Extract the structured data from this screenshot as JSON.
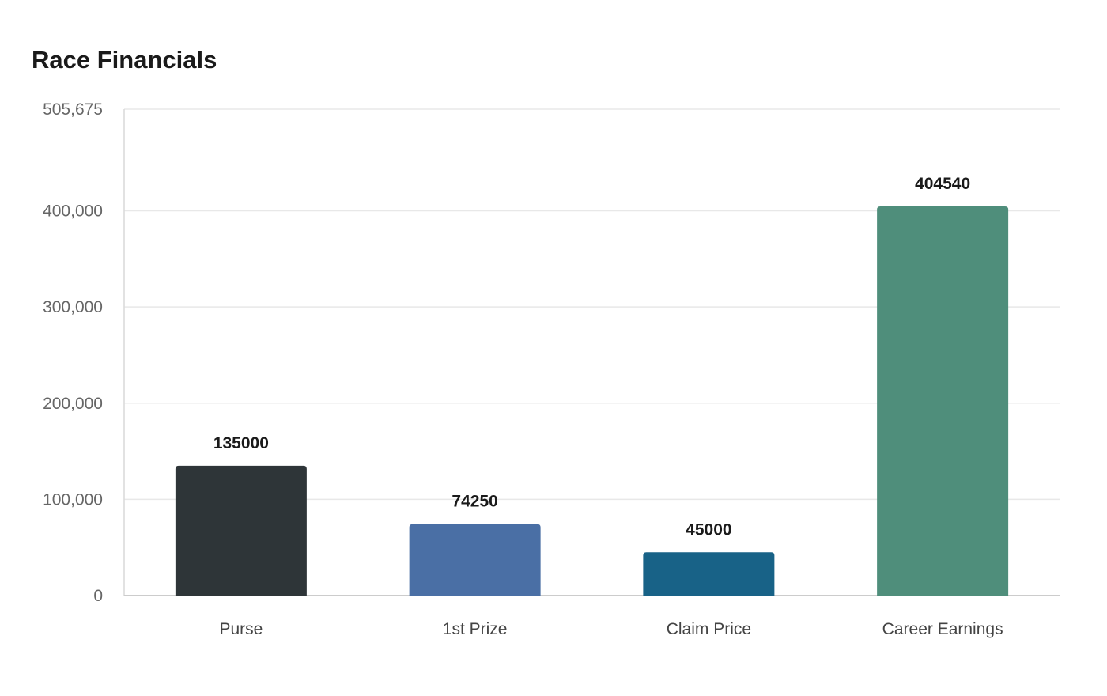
{
  "chart_data": {
    "type": "bar",
    "title": "Race Financials",
    "categories": [
      "Purse",
      "1st Prize",
      "Claim Price",
      "Career Earnings"
    ],
    "values": [
      135000,
      74250,
      45000,
      404540
    ],
    "colors": [
      "#2e3538",
      "#4a6fa5",
      "#186287",
      "#4f8e7b"
    ],
    "ylim": [
      0,
      505675
    ],
    "yticks": [
      0,
      100000,
      200000,
      300000,
      400000,
      505675
    ],
    "ytick_labels": [
      "0",
      "100,000",
      "200,000",
      "300,000",
      "400,000",
      "505,675"
    ],
    "grid": true,
    "xlabel": "",
    "ylabel": ""
  }
}
